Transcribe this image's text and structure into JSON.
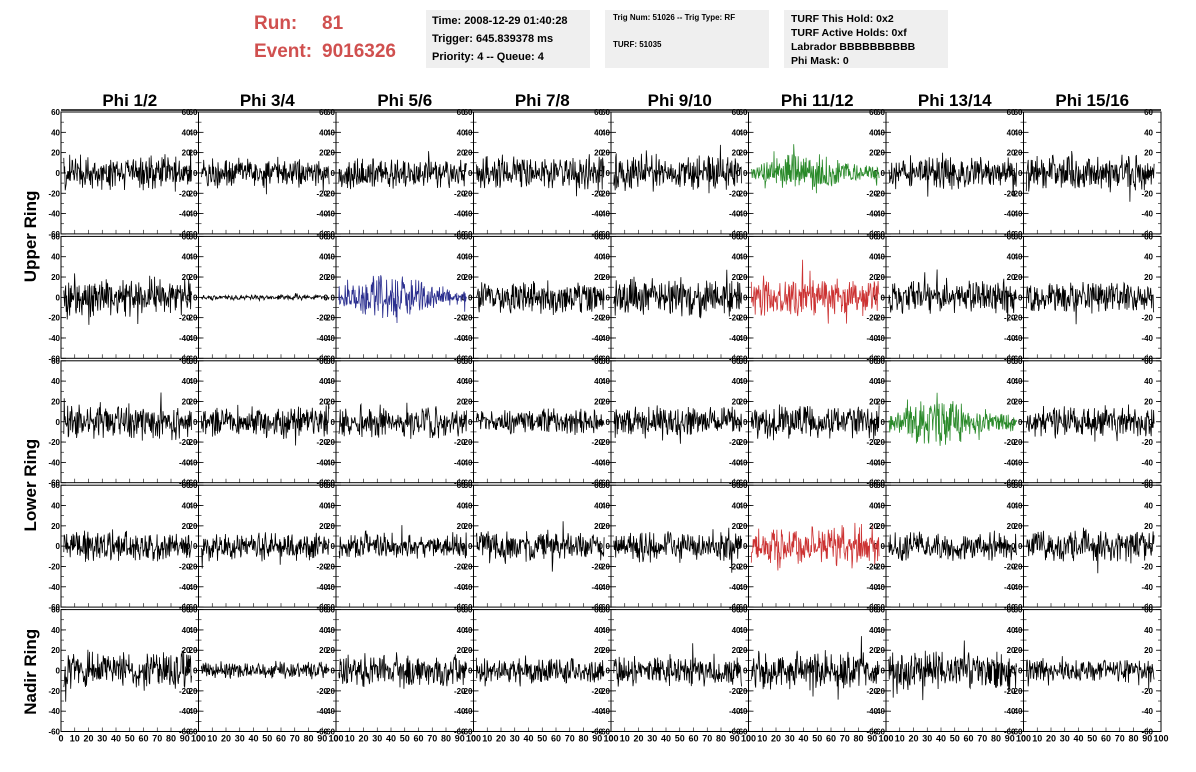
{
  "header": {
    "run_label": "Run:",
    "run_value": "81",
    "event_label": "Event:",
    "event_value": "9016326",
    "box1": [
      "Time: 2008-12-29 01:40:28",
      "Trigger: 645.839378 ms",
      "Priority: 4 -- Queue: 4"
    ],
    "box2": [
      "Trig Num: 51026 -- Trig Type: RF",
      "TURF: 51035"
    ],
    "box3": [
      "TURF This Hold: 0x2",
      "TURF Active Holds: 0xf",
      "Labrador BBBBBBBBBB",
      "Phi Mask: 0"
    ]
  },
  "chart_data": {
    "type": "line",
    "columns": [
      "Phi 1/2",
      "Phi 3/4",
      "Phi 5/6",
      "Phi 7/8",
      "Phi 9/10",
      "Phi 11/12",
      "Phi 13/14",
      "Phi 15/16"
    ],
    "ring_labels": [
      "Upper Ring",
      "Lower Ring",
      "Nadir Ring"
    ],
    "rows": 5,
    "ring_row_spans": [
      [
        0,
        1
      ],
      [
        2,
        3
      ],
      [
        4,
        4
      ]
    ],
    "ylim": [
      -60,
      60
    ],
    "y_ticks": [
      -60,
      -40,
      -20,
      0,
      20,
      40,
      60
    ],
    "xlim": [
      0,
      100
    ],
    "x_ticks": [
      0,
      10,
      20,
      30,
      40,
      50,
      60,
      70,
      80,
      90,
      100
    ],
    "trace_points": 260,
    "default_color": "#000000",
    "amplitudes": [
      [
        12,
        10,
        11,
        12,
        13,
        12,
        11,
        12
      ],
      [
        13,
        2,
        11,
        11,
        13,
        13,
        11,
        11
      ],
      [
        12,
        11,
        11,
        9,
        11,
        12,
        11,
        11
      ],
      [
        11,
        10,
        9,
        11,
        11,
        11,
        10,
        11
      ],
      [
        13,
        6,
        12,
        9,
        11,
        13,
        13,
        8
      ]
    ],
    "highlighted": [
      {
        "row": 0,
        "col": 5,
        "color": "#2a8a2a",
        "amp": 12,
        "burst": true
      },
      {
        "row": 1,
        "col": 2,
        "color": "#2b2f8f",
        "amp": 14,
        "burst": true
      },
      {
        "row": 1,
        "col": 5,
        "color": "#cc3333",
        "amp": 14,
        "burst": false
      },
      {
        "row": 2,
        "col": 6,
        "color": "#2a8a2a",
        "amp": 15,
        "burst": true
      },
      {
        "row": 3,
        "col": 5,
        "color": "#cc3333",
        "amp": 14,
        "burst": false
      }
    ]
  }
}
